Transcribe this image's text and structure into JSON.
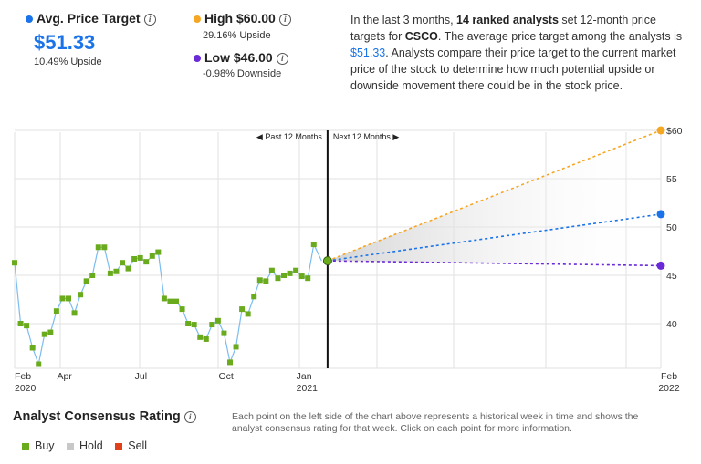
{
  "summary": {
    "avg": {
      "label": "Avg. Price Target",
      "value": "$51.33",
      "sub": "10.49% Upside",
      "color": "#1a73e8"
    },
    "high": {
      "label": "High $60.00",
      "sub": "29.16% Upside",
      "color": "#f5a623"
    },
    "low": {
      "label": "Low $46.00",
      "sub": "-0.98% Downside",
      "color": "#6a2ad8"
    }
  },
  "description": {
    "p1": "In the last 3 months, ",
    "count": "14 ranked analysts",
    "p2": " set 12-month price targets for ",
    "ticker": "CSCO",
    "p3": ". The average price target among the analysts is ",
    "avg": "$51.33",
    "p4": ". Analysts compare their price target to the current market price of the stock to determine how much potential upside or downside movement there could be in the stock price."
  },
  "chart_data": {
    "type": "line",
    "title": "",
    "ylim": [
      35,
      60
    ],
    "yticks": [
      "$60",
      "55",
      "50",
      "45",
      "40"
    ],
    "ytick_values": [
      60,
      55,
      50,
      45,
      40
    ],
    "past_label": "Past 12 Months",
    "next_label": "Next 12 Months",
    "xticks": [
      {
        "label": "Feb",
        "sub": "2020",
        "week": 0
      },
      {
        "label": "Apr",
        "sub": "",
        "week": 8
      },
      {
        "label": "Jul",
        "sub": "",
        "week": 21
      },
      {
        "label": "Oct",
        "sub": "",
        "week": 35
      },
      {
        "label": "Jan",
        "sub": "2021",
        "week": 48
      },
      {
        "label": "Feb",
        "sub": "2022",
        "week": 108
      }
    ],
    "weekly_prices": [
      46.3,
      40,
      39.8,
      37.5,
      35.8,
      38.9,
      39.1,
      41.3,
      42.6,
      42.6,
      41.1,
      43,
      44.4,
      45,
      47.9,
      47.9,
      45.2,
      45.4,
      46.3,
      45.7,
      46.7,
      46.8,
      46.4,
      47,
      47.4,
      42.6,
      42.3,
      42.3,
      41.5,
      40,
      39.9,
      38.6,
      38.4,
      39.9,
      40.3,
      39,
      36,
      37.6,
      41.5,
      41,
      42.8,
      44.5,
      44.4,
      45.5,
      44.7,
      45,
      45.2,
      45.5,
      44.9,
      44.7,
      48.2,
      46.5
    ],
    "current": 46.5,
    "targets": [
      {
        "name": "High",
        "value": 60.0,
        "color": "#f5a623"
      },
      {
        "name": "Avg",
        "value": 51.33,
        "color": "#1a73e8"
      },
      {
        "name": "Low",
        "value": 46.0,
        "color": "#6a2ad8"
      }
    ],
    "total_weeks": 108,
    "split_week": 52
  },
  "consensus": {
    "title": "Analyst Consensus Rating",
    "note": "Each point on the left side of the chart above represents a historical week in time and shows the analyst consensus rating for that week. Click on each point for more information.",
    "legend": [
      {
        "label": "Buy",
        "color": "#6aab1e"
      },
      {
        "label": "Hold",
        "color": "#c8c8c8"
      },
      {
        "label": "Sell",
        "color": "#e0401a"
      }
    ]
  }
}
